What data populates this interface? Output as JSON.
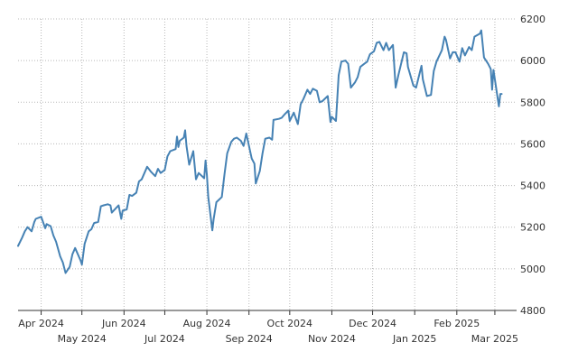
{
  "chart_data": {
    "type": "line",
    "title": "",
    "xlabel": "",
    "ylabel": "",
    "ylim": [
      4800,
      6200
    ],
    "y_ticks": [
      4800,
      5000,
      5200,
      5400,
      5600,
      5800,
      6000,
      6200
    ],
    "y_axis_side": "right",
    "xlim": [
      "2024-03-15",
      "2025-03-17"
    ],
    "x_ticks": [
      {
        "date": "2024-04-01",
        "label": "Apr 2024"
      },
      {
        "date": "2024-05-01",
        "label": "May 2024"
      },
      {
        "date": "2024-06-01",
        "label": "Jun 2024"
      },
      {
        "date": "2024-07-01",
        "label": "Jul 2024"
      },
      {
        "date": "2024-08-01",
        "label": "Aug 2024"
      },
      {
        "date": "2024-09-01",
        "label": "Sep 2024"
      },
      {
        "date": "2024-10-01",
        "label": "Oct 2024"
      },
      {
        "date": "2024-11-01",
        "label": "Nov 2024"
      },
      {
        "date": "2024-12-01",
        "label": "Dec 2024"
      },
      {
        "date": "2025-01-01",
        "label": "Jan 2025"
      },
      {
        "date": "2025-02-01",
        "label": "Feb 2025"
      },
      {
        "date": "2025-03-01",
        "label": "Mar 2025"
      }
    ],
    "grid": true,
    "legend": "none",
    "colors": {
      "line": "#4682b4",
      "grid": "#b8b8b8",
      "axis": "#333333"
    },
    "series": [
      {
        "name": "",
        "points": [
          [
            "2024-03-15",
            5110
          ],
          [
            "2024-03-18",
            5150
          ],
          [
            "2024-03-20",
            5180
          ],
          [
            "2024-03-22",
            5200
          ],
          [
            "2024-03-25",
            5180
          ],
          [
            "2024-03-27",
            5225
          ],
          [
            "2024-03-28",
            5240
          ],
          [
            "2024-04-01",
            5250
          ],
          [
            "2024-04-04",
            5195
          ],
          [
            "2024-04-05",
            5215
          ],
          [
            "2024-04-08",
            5205
          ],
          [
            "2024-04-10",
            5160
          ],
          [
            "2024-04-12",
            5130
          ],
          [
            "2024-04-15",
            5060
          ],
          [
            "2024-04-17",
            5030
          ],
          [
            "2024-04-19",
            4980
          ],
          [
            "2024-04-22",
            5010
          ],
          [
            "2024-04-24",
            5070
          ],
          [
            "2024-04-26",
            5100
          ],
          [
            "2024-04-30",
            5040
          ],
          [
            "2024-05-01",
            5020
          ],
          [
            "2024-05-03",
            5120
          ],
          [
            "2024-05-06",
            5180
          ],
          [
            "2024-05-08",
            5190
          ],
          [
            "2024-05-10",
            5220
          ],
          [
            "2024-05-13",
            5225
          ],
          [
            "2024-05-15",
            5300
          ],
          [
            "2024-05-17",
            5305
          ],
          [
            "2024-05-20",
            5310
          ],
          [
            "2024-05-22",
            5305
          ],
          [
            "2024-05-23",
            5270
          ],
          [
            "2024-05-28",
            5305
          ],
          [
            "2024-05-30",
            5240
          ],
          [
            "2024-05-31",
            5280
          ],
          [
            "2024-06-03",
            5285
          ],
          [
            "2024-06-05",
            5355
          ],
          [
            "2024-06-07",
            5350
          ],
          [
            "2024-06-10",
            5365
          ],
          [
            "2024-06-12",
            5420
          ],
          [
            "2024-06-14",
            5430
          ],
          [
            "2024-06-17",
            5475
          ],
          [
            "2024-06-18",
            5490
          ],
          [
            "2024-06-21",
            5465
          ],
          [
            "2024-06-24",
            5445
          ],
          [
            "2024-06-26",
            5480
          ],
          [
            "2024-06-28",
            5460
          ],
          [
            "2024-07-01",
            5475
          ],
          [
            "2024-07-03",
            5540
          ],
          [
            "2024-07-05",
            5565
          ],
          [
            "2024-07-09",
            5575
          ],
          [
            "2024-07-10",
            5635
          ],
          [
            "2024-07-11",
            5585
          ],
          [
            "2024-07-12",
            5615
          ],
          [
            "2024-07-15",
            5630
          ],
          [
            "2024-07-16",
            5665
          ],
          [
            "2024-07-17",
            5590
          ],
          [
            "2024-07-19",
            5500
          ],
          [
            "2024-07-22",
            5565
          ],
          [
            "2024-07-24",
            5430
          ],
          [
            "2024-07-26",
            5460
          ],
          [
            "2024-07-30",
            5435
          ],
          [
            "2024-07-31",
            5520
          ],
          [
            "2024-08-01",
            5450
          ],
          [
            "2024-08-02",
            5345
          ],
          [
            "2024-08-05",
            5185
          ],
          [
            "2024-08-06",
            5240
          ],
          [
            "2024-08-08",
            5320
          ],
          [
            "2024-08-12",
            5345
          ],
          [
            "2024-08-14",
            5455
          ],
          [
            "2024-08-16",
            5555
          ],
          [
            "2024-08-19",
            5610
          ],
          [
            "2024-08-21",
            5625
          ],
          [
            "2024-08-23",
            5630
          ],
          [
            "2024-08-26",
            5615
          ],
          [
            "2024-08-28",
            5590
          ],
          [
            "2024-08-30",
            5650
          ],
          [
            "2024-09-03",
            5530
          ],
          [
            "2024-09-05",
            5505
          ],
          [
            "2024-09-06",
            5410
          ],
          [
            "2024-09-09",
            5470
          ],
          [
            "2024-09-11",
            5555
          ],
          [
            "2024-09-13",
            5625
          ],
          [
            "2024-09-16",
            5630
          ],
          [
            "2024-09-18",
            5620
          ],
          [
            "2024-09-19",
            5715
          ],
          [
            "2024-09-23",
            5720
          ],
          [
            "2024-09-25",
            5725
          ],
          [
            "2024-09-27",
            5740
          ],
          [
            "2024-09-30",
            5760
          ],
          [
            "2024-10-01",
            5710
          ],
          [
            "2024-10-04",
            5750
          ],
          [
            "2024-10-07",
            5695
          ],
          [
            "2024-10-09",
            5790
          ],
          [
            "2024-10-11",
            5815
          ],
          [
            "2024-10-14",
            5860
          ],
          [
            "2024-10-16",
            5840
          ],
          [
            "2024-10-18",
            5865
          ],
          [
            "2024-10-21",
            5855
          ],
          [
            "2024-10-23",
            5800
          ],
          [
            "2024-10-25",
            5805
          ],
          [
            "2024-10-29",
            5830
          ],
          [
            "2024-10-31",
            5705
          ],
          [
            "2024-11-01",
            5730
          ],
          [
            "2024-11-04",
            5710
          ],
          [
            "2024-11-06",
            5930
          ],
          [
            "2024-11-08",
            5995
          ],
          [
            "2024-11-11",
            6000
          ],
          [
            "2024-11-13",
            5985
          ],
          [
            "2024-11-15",
            5870
          ],
          [
            "2024-11-18",
            5895
          ],
          [
            "2024-11-20",
            5920
          ],
          [
            "2024-11-22",
            5970
          ],
          [
            "2024-11-25",
            5985
          ],
          [
            "2024-11-27",
            5995
          ],
          [
            "2024-11-29",
            6030
          ],
          [
            "2024-12-02",
            6045
          ],
          [
            "2024-12-04",
            6085
          ],
          [
            "2024-12-06",
            6090
          ],
          [
            "2024-12-09",
            6050
          ],
          [
            "2024-12-11",
            6085
          ],
          [
            "2024-12-13",
            6050
          ],
          [
            "2024-12-16",
            6075
          ],
          [
            "2024-12-18",
            5870
          ],
          [
            "2024-12-20",
            5930
          ],
          [
            "2024-12-24",
            6040
          ],
          [
            "2024-12-26",
            6035
          ],
          [
            "2024-12-27",
            5970
          ],
          [
            "2024-12-31",
            5880
          ],
          [
            "2025-01-02",
            5870
          ],
          [
            "2025-01-06",
            5975
          ],
          [
            "2025-01-07",
            5910
          ],
          [
            "2025-01-10",
            5830
          ],
          [
            "2025-01-13",
            5835
          ],
          [
            "2025-01-15",
            5950
          ],
          [
            "2025-01-17",
            5995
          ],
          [
            "2025-01-21",
            6050
          ],
          [
            "2025-01-23",
            6115
          ],
          [
            "2025-01-24",
            6100
          ],
          [
            "2025-01-27",
            6010
          ],
          [
            "2025-01-29",
            6040
          ],
          [
            "2025-01-31",
            6040
          ],
          [
            "2025-02-03",
            5995
          ],
          [
            "2025-02-05",
            6060
          ],
          [
            "2025-02-07",
            6025
          ],
          [
            "2025-02-10",
            6065
          ],
          [
            "2025-02-12",
            6050
          ],
          [
            "2025-02-14",
            6115
          ],
          [
            "2025-02-18",
            6130
          ],
          [
            "2025-02-19",
            6145
          ],
          [
            "2025-02-21",
            6015
          ],
          [
            "2025-02-24",
            5985
          ],
          [
            "2025-02-26",
            5960
          ],
          [
            "2025-02-27",
            5860
          ],
          [
            "2025-02-28",
            5955
          ],
          [
            "2025-03-04",
            5780
          ],
          [
            "2025-03-05",
            5840
          ],
          [
            "2025-03-06",
            5840
          ]
        ]
      }
    ]
  }
}
